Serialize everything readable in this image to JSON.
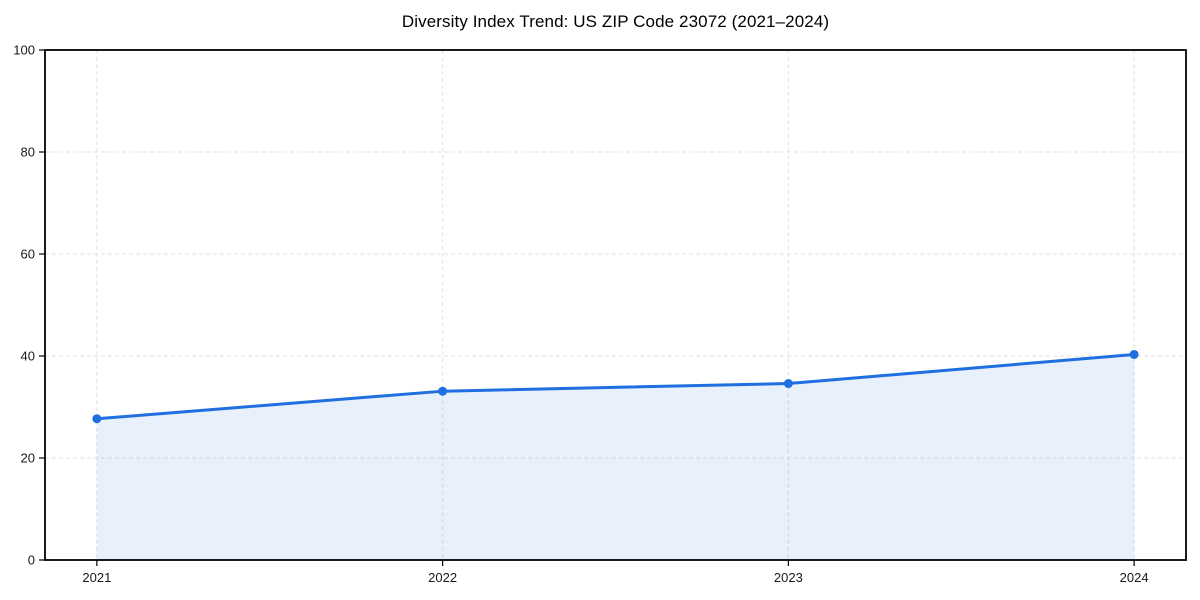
{
  "page": {
    "background": "#ffffff"
  },
  "chart_data": {
    "type": "area",
    "title": "Diversity Index Trend: US ZIP Code 23072 (2021–2024)",
    "x": [
      2021,
      2022,
      2023,
      2024
    ],
    "xtick_labels": [
      "2021",
      "2022",
      "2023",
      "2024"
    ],
    "series": [
      {
        "name": "Diversity Index",
        "values": [
          27.7,
          33.1,
          34.6,
          40.3
        ]
      }
    ],
    "xlabel": "",
    "ylabel": "",
    "ylim": [
      0,
      100
    ],
    "yticks": [
      0,
      20,
      40,
      60,
      80,
      100
    ],
    "x_margin_fraction": 0.05,
    "grid": true,
    "grid_style": "dashed",
    "legend_position": "none",
    "marker": "circle",
    "colors": {
      "line": "#1f6fe0",
      "marker": "#1f6fe0",
      "area_fill": "rgba(31,111,224,0.10)",
      "grid": "#e2e2e2",
      "spine": "#000000",
      "tick": "#000000",
      "tick_label": "#1a1a1a",
      "title": "#000000",
      "background": "#ffffff"
    }
  }
}
